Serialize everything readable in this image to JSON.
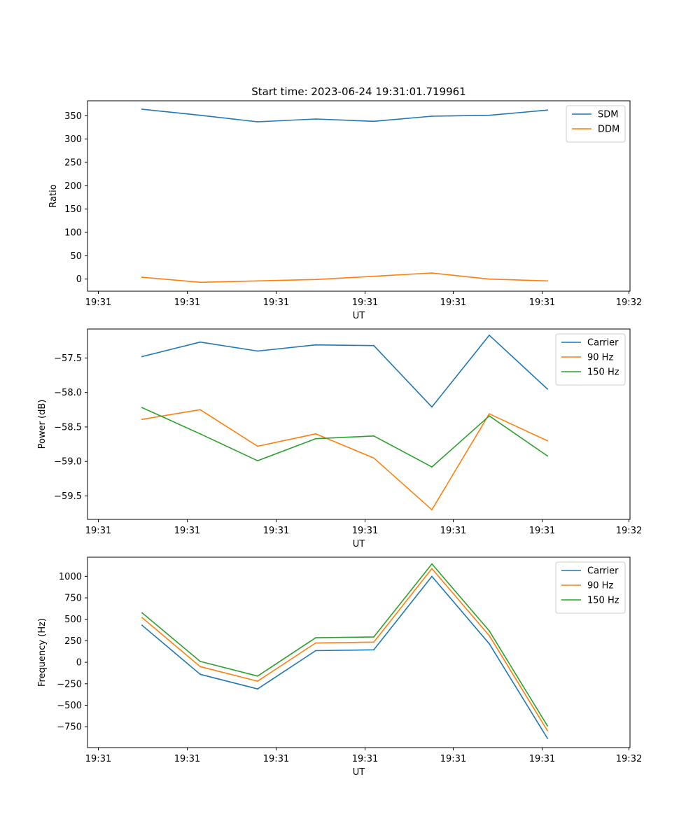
{
  "title": "Start time: 2023-06-24 19:31:01.719961",
  "chart_data": [
    {
      "type": "line",
      "xlabel": "UT",
      "ylabel": "Ratio",
      "x_tick_labels": [
        "19:31",
        "19:31",
        "19:31",
        "19:31",
        "19:31",
        "19:31",
        "19:32"
      ],
      "ylim": [
        -26,
        382
      ],
      "yticks": [
        0,
        50,
        100,
        150,
        200,
        250,
        300,
        350
      ],
      "legend": "top-right",
      "series": [
        {
          "name": "SDM",
          "color": "#1f77b4",
          "values": [
            364,
            351,
            337,
            343,
            338,
            349,
            351,
            362
          ]
        },
        {
          "name": "DDM",
          "color": "#ff7f0e",
          "values": [
            4,
            -7,
            -4,
            -1,
            6,
            13,
            0,
            -4
          ]
        }
      ]
    },
    {
      "type": "line",
      "xlabel": "UT",
      "ylabel": "Power (dB)",
      "x_tick_labels": [
        "19:31",
        "19:31",
        "19:31",
        "19:31",
        "19:31",
        "19:31",
        "19:32"
      ],
      "ylim": [
        -59.84,
        -57.08
      ],
      "yticks": [
        -59.5,
        -59.0,
        -58.5,
        -58.0,
        -57.5
      ],
      "ytick_labels": [
        "−59.5",
        "−59.0",
        "−58.5",
        "−58.0",
        "−57.5"
      ],
      "legend": "top-right",
      "series": [
        {
          "name": "Carrier",
          "color": "#1f77b4",
          "values": [
            -57.48,
            -57.27,
            -57.4,
            -57.31,
            -57.32,
            -58.21,
            -57.17,
            -57.95
          ]
        },
        {
          "name": "90 Hz",
          "color": "#ff7f0e",
          "values": [
            -58.39,
            -58.25,
            -58.78,
            -58.6,
            -58.95,
            -59.7,
            -58.31,
            -58.7
          ]
        },
        {
          "name": "150 Hz",
          "color": "#2ca02c",
          "values": [
            -58.22,
            -58.6,
            -58.99,
            -58.67,
            -58.63,
            -59.08,
            -58.34,
            -58.92
          ]
        }
      ]
    },
    {
      "type": "line",
      "xlabel": "UT",
      "ylabel": "Frequency (Hz)",
      "x_tick_labels": [
        "19:31",
        "19:31",
        "19:31",
        "19:31",
        "19:31",
        "19:31",
        "19:32"
      ],
      "ylim": [
        -993,
        1223
      ],
      "yticks": [
        -750,
        -500,
        -250,
        0,
        250,
        500,
        750,
        1000
      ],
      "ytick_labels": [
        "−750",
        "−500",
        "−250",
        "0",
        "250",
        "500",
        "750",
        "1000"
      ],
      "legend": "top-right",
      "series": [
        {
          "name": "Carrier",
          "color": "#1f77b4",
          "values": [
            430,
            -140,
            -310,
            135,
            145,
            1000,
            215,
            -885
          ]
        },
        {
          "name": "90 Hz",
          "color": "#ff7f0e",
          "values": [
            520,
            -50,
            -220,
            225,
            235,
            1090,
            310,
            -795
          ]
        },
        {
          "name": "150 Hz",
          "color": "#2ca02c",
          "values": [
            575,
            10,
            -160,
            285,
            295,
            1145,
            365,
            -740
          ]
        }
      ]
    }
  ]
}
